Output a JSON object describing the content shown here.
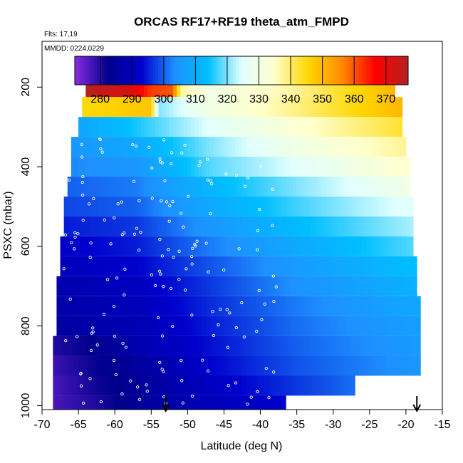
{
  "chart_data": {
    "type": "heatmap",
    "title": "ORCAS RF17+RF19 theta_atm_FMPD",
    "flights_label": "Flts: 17,19",
    "dates_label": "MMDD: 0224,0229",
    "xlabel": "Latitude (deg N)",
    "ylabel": "PSXC (mbar)",
    "xlim": [
      -70,
      -15
    ],
    "ylim": [
      1010,
      85
    ],
    "y_reversed": true,
    "x_ticks": [
      "-70",
      "-65",
      "-60",
      "-55",
      "-50",
      "-45",
      "-40",
      "-35",
      "-30",
      "-25",
      "-20",
      "-15"
    ],
    "y_ticks": [
      "200",
      "400",
      "600",
      "800",
      "1000"
    ],
    "colorbar": {
      "range": [
        272,
        377
      ],
      "ticks": [
        "280",
        "290",
        "300",
        "310",
        "320",
        "330",
        "340",
        "350",
        "360",
        "370"
      ],
      "colors": [
        "#8a2be2",
        "#00008b",
        "#0000cd",
        "#1e90ff",
        "#00bfff",
        "#e0ffff",
        "#ffffcc",
        "#ffd700",
        "#ff8c00",
        "#ff0000",
        "#b22222"
      ]
    },
    "colorbar_position": "top, inside plot",
    "markers": [
      "-53",
      "-18.5"
    ],
    "layers": [
      {
        "p": 200,
        "xmin": -64,
        "xmax": -21.5,
        "segments": [
          [
            -64,
            376
          ],
          [
            -58,
            372
          ],
          [
            -55,
            362
          ],
          [
            -52,
            360
          ],
          [
            -51,
            338
          ],
          [
            -47,
            330
          ],
          [
            -36,
            337
          ],
          [
            -21.5,
            350
          ]
        ]
      },
      {
        "p": 250,
        "xmin": -64.5,
        "xmax": -20.5,
        "segments": [
          [
            -64.5,
            345
          ],
          [
            -55,
            348
          ],
          [
            -54,
            320
          ],
          [
            -47,
            330
          ],
          [
            -36,
            338
          ],
          [
            -20.5,
            350
          ]
        ]
      },
      {
        "p": 300,
        "xmin": -65,
        "xmax": -20.5,
        "segments": [
          [
            -65,
            308
          ],
          [
            -57,
            315
          ],
          [
            -47,
            325
          ],
          [
            -36,
            333
          ],
          [
            -20.5,
            343
          ]
        ]
      },
      {
        "p": 350,
        "xmin": -66,
        "xmax": -20,
        "segments": [
          [
            -66,
            305
          ],
          [
            -57,
            309
          ],
          [
            -47,
            320
          ],
          [
            -35,
            330
          ],
          [
            -20,
            338
          ]
        ]
      },
      {
        "p": 400,
        "xmin": -66,
        "xmax": -19.5,
        "segments": [
          [
            -66,
            303
          ],
          [
            -57,
            305
          ],
          [
            -47,
            318
          ],
          [
            -35,
            325
          ],
          [
            -19.5,
            335
          ]
        ]
      },
      {
        "p": 450,
        "xmin": -66.5,
        "xmax": -19.5,
        "segments": [
          [
            -66.5,
            300
          ],
          [
            -57,
            302
          ],
          [
            -47,
            312
          ],
          [
            -35,
            320
          ],
          [
            -19.5,
            330
          ]
        ]
      },
      {
        "p": 500,
        "xmin": -67,
        "xmax": -19,
        "segments": [
          [
            -67,
            298
          ],
          [
            -57,
            300
          ],
          [
            -47,
            309
          ],
          [
            -35,
            317
          ],
          [
            -19,
            326
          ]
        ]
      },
      {
        "p": 550,
        "xmin": -67,
        "xmax": -19,
        "segments": [
          [
            -67,
            295
          ],
          [
            -57,
            297
          ],
          [
            -47,
            305
          ],
          [
            -35,
            313
          ],
          [
            -19,
            322
          ]
        ]
      },
      {
        "p": 600,
        "xmin": -67.5,
        "xmax": -19,
        "segments": [
          [
            -67.5,
            292
          ],
          [
            -57,
            295
          ],
          [
            -47,
            302
          ],
          [
            -35,
            309
          ],
          [
            -19,
            318
          ]
        ]
      },
      {
        "p": 650,
        "xmin": -67.5,
        "xmax": -18.5,
        "segments": [
          [
            -67.5,
            290
          ],
          [
            -57,
            293
          ],
          [
            -47,
            299
          ],
          [
            -35,
            306
          ],
          [
            -18.5,
            314
          ]
        ]
      },
      {
        "p": 700,
        "xmin": -68,
        "xmax": -18.5,
        "segments": [
          [
            -68,
            288
          ],
          [
            -57,
            291
          ],
          [
            -47,
            297
          ],
          [
            -35,
            304
          ],
          [
            -18.5,
            311
          ]
        ]
      },
      {
        "p": 750,
        "xmin": -68,
        "xmax": -18,
        "segments": [
          [
            -68,
            287
          ],
          [
            -57,
            290
          ],
          [
            -47,
            296
          ],
          [
            -35,
            302
          ],
          [
            -18,
            309
          ]
        ]
      },
      {
        "p": 800,
        "xmin": -68,
        "xmax": -18,
        "segments": [
          [
            -68,
            286
          ],
          [
            -57,
            289
          ],
          [
            -47,
            295
          ],
          [
            -35,
            301
          ],
          [
            -18,
            307
          ]
        ]
      },
      {
        "p": 850,
        "xmin": -68.5,
        "xmax": -18,
        "segments": [
          [
            -68.5,
            280
          ],
          [
            -64,
            282
          ],
          [
            -57,
            288
          ],
          [
            -47,
            294
          ],
          [
            -35,
            300
          ],
          [
            -18,
            306
          ]
        ]
      },
      {
        "p": 900,
        "xmin": -68.5,
        "xmax": -18,
        "segments": [
          [
            -68.5,
            278
          ],
          [
            -64,
            281
          ],
          [
            -56,
            286
          ],
          [
            -47,
            293
          ],
          [
            -35,
            299
          ],
          [
            -18,
            305
          ]
        ]
      },
      {
        "p": 950,
        "xmin": -68.5,
        "xmax": -27,
        "segments": [
          [
            -68.5,
            277
          ],
          [
            -63,
            281
          ],
          [
            -56,
            285
          ],
          [
            -47,
            291
          ],
          [
            -35,
            297
          ],
          [
            -27,
            301
          ]
        ]
      },
      {
        "p": 1000,
        "xmin": -68.5,
        "xmax": -36.5,
        "segments": [
          [
            -68.5,
            277
          ],
          [
            -63,
            280
          ],
          [
            -56,
            285
          ],
          [
            -47,
            290
          ],
          [
            -36.5,
            293
          ]
        ]
      }
    ]
  }
}
